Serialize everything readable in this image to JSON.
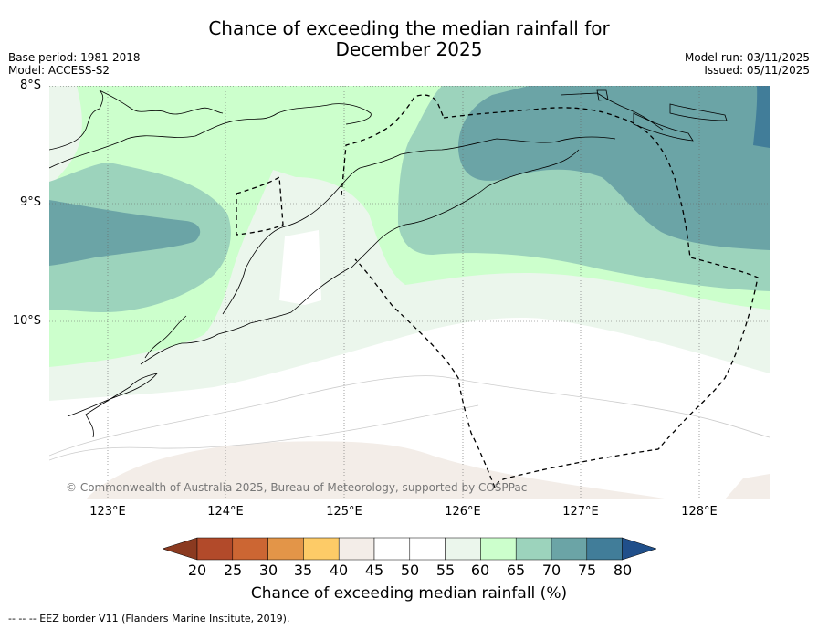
{
  "title": {
    "line1": "Chance of exceeding the median rainfall for",
    "line2": "December 2025"
  },
  "meta": {
    "base_period": "Base period: 1981-2018",
    "model": "Model: ACCESS-S2",
    "model_run": "Model run: 03/11/2025",
    "issued": "Issued: 05/11/2025"
  },
  "axes": {
    "lat_labels": [
      "8°S",
      "9°S",
      "10°S"
    ],
    "lon_labels": [
      "123°E",
      "124°E",
      "125°E",
      "126°E",
      "127°E",
      "128°E"
    ]
  },
  "copyright": "© Commonwealth of Australia 2025, Bureau of Meteorology, supported by COSPPac",
  "colorbar": {
    "ticks": [
      "20",
      "25",
      "30",
      "35",
      "40",
      "45",
      "50",
      "55",
      "60",
      "65",
      "70",
      "75",
      "80"
    ],
    "colors": {
      "below20": "#8b3a20",
      "20_25": "#b24a2a",
      "25_30": "#cc6633",
      "30_35": "#e39548",
      "35_40": "#fdcb67",
      "40_45": "#f3ede8",
      "45_50": "#ffffff",
      "50_55": "#ffffff",
      "55_60": "#ebf6ec",
      "60_65": "#ccffcc",
      "65_70": "#9cd3bc",
      "70_75": "#6ba4a6",
      "75_80": "#417d99",
      "above80": "#204f8a"
    },
    "label": "Chance of exceeding median rainfall (%)"
  },
  "footer": "--  --  -- EEZ border V11 (Flanders Marine Institute, 2019)."
}
